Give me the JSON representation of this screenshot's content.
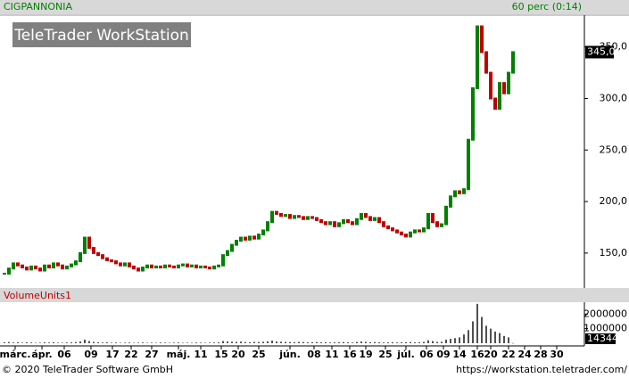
{
  "header": {
    "symbol": "CIGPANNONIA",
    "interval": "60 perc (0:14)",
    "logo": "TeleTrader WorkStation"
  },
  "footer": {
    "copyright": "© 2020 TeleTrader Software GmbH",
    "url": "https://workstation.teletrader.com/"
  },
  "chart_data": [
    {
      "type": "candle",
      "up_color": "#008000",
      "down_color": "#c00000",
      "last_label": "345,0",
      "x": [
        1,
        2,
        3,
        4,
        5,
        6,
        7,
        8,
        9,
        10,
        11,
        12,
        13,
        14,
        15,
        16,
        17,
        18,
        19,
        20,
        21,
        22,
        23,
        24,
        25,
        26,
        27,
        28,
        29,
        30,
        31,
        32,
        33,
        34,
        35,
        36,
        37,
        38,
        39,
        40,
        41,
        42,
        43,
        44,
        45,
        46,
        47,
        48,
        49,
        50,
        51,
        52,
        53,
        54,
        55,
        56,
        57,
        58,
        59,
        60,
        61,
        62,
        63,
        64,
        65,
        66,
        67,
        68,
        69,
        70,
        71,
        72,
        73,
        74,
        75,
        76,
        77,
        78,
        79,
        80,
        81,
        82,
        83,
        84,
        85,
        86,
        87,
        88,
        89,
        90,
        91,
        92,
        93,
        94,
        95,
        96,
        97,
        98,
        99,
        100,
        101,
        102,
        103,
        104,
        105,
        106,
        107,
        108,
        109,
        110,
        111,
        112,
        113,
        114,
        115
      ],
      "values": [
        130,
        135,
        140,
        138,
        136,
        134,
        137,
        135,
        133,
        138,
        136,
        140,
        138,
        135,
        137,
        139,
        142,
        150,
        165,
        155,
        150,
        148,
        145,
        143,
        142,
        140,
        138,
        140,
        137,
        135,
        133,
        136,
        138,
        136,
        137,
        136,
        138,
        137,
        136,
        138,
        139,
        137,
        138,
        136,
        137,
        136,
        135,
        137,
        138,
        148,
        152,
        158,
        162,
        165,
        163,
        166,
        164,
        168,
        172,
        180,
        190,
        188,
        186,
        187,
        184,
        186,
        185,
        183,
        185,
        184,
        182,
        180,
        178,
        180,
        176,
        179,
        182,
        180,
        178,
        183,
        188,
        185,
        182,
        184,
        180,
        176,
        174,
        172,
        170,
        168,
        166,
        170,
        172,
        171,
        174,
        188,
        180,
        176,
        178,
        195,
        205,
        210,
        208,
        212,
        260,
        310,
        370,
        345,
        325,
        300,
        290,
        315,
        305,
        325,
        345
      ],
      "xlim": [
        0,
        131
      ],
      "ylim": [
        117,
        380
      ],
      "yticks": [
        {
          "value": 150,
          "label": "150,0"
        },
        {
          "value": 200,
          "label": "200,0"
        },
        {
          "value": 250,
          "label": "250,0"
        },
        {
          "value": 300,
          "label": "300,0"
        },
        {
          "value": 350,
          "label": "350,0"
        }
      ]
    },
    {
      "type": "bar",
      "title": "VolumeUnits1",
      "color": "#505050",
      "last_label": "14344",
      "x": [
        1,
        2,
        3,
        4,
        5,
        6,
        7,
        8,
        9,
        10,
        11,
        12,
        13,
        14,
        15,
        16,
        17,
        18,
        19,
        20,
        21,
        22,
        23,
        24,
        25,
        26,
        27,
        28,
        29,
        30,
        31,
        32,
        33,
        34,
        35,
        36,
        37,
        38,
        39,
        40,
        41,
        42,
        43,
        44,
        45,
        46,
        47,
        48,
        49,
        50,
        51,
        52,
        53,
        54,
        55,
        56,
        57,
        58,
        59,
        60,
        61,
        62,
        63,
        64,
        65,
        66,
        67,
        68,
        69,
        70,
        71,
        72,
        73,
        74,
        75,
        76,
        77,
        78,
        79,
        80,
        81,
        82,
        83,
        84,
        85,
        86,
        87,
        88,
        89,
        90,
        91,
        92,
        93,
        94,
        95,
        96,
        97,
        98,
        99,
        100,
        101,
        102,
        103,
        104,
        105,
        106,
        107,
        108,
        109,
        110,
        111,
        112,
        113,
        114,
        115
      ],
      "values": [
        60000,
        80000,
        50000,
        70000,
        40000,
        60000,
        50000,
        30000,
        40000,
        60000,
        50000,
        70000,
        40000,
        30000,
        50000,
        60000,
        80000,
        120000,
        250000,
        150000,
        90000,
        70000,
        50000,
        60000,
        40000,
        50000,
        30000,
        40000,
        50000,
        30000,
        40000,
        50000,
        30000,
        40000,
        30000,
        50000,
        40000,
        30000,
        40000,
        50000,
        30000,
        40000,
        30000,
        50000,
        40000,
        30000,
        40000,
        50000,
        60000,
        150000,
        120000,
        100000,
        90000,
        110000,
        80000,
        70000,
        90000,
        80000,
        100000,
        130000,
        180000,
        120000,
        100000,
        90000,
        80000,
        70000,
        90000,
        80000,
        60000,
        70000,
        80000,
        60000,
        70000,
        50000,
        60000,
        70000,
        80000,
        60000,
        50000,
        90000,
        120000,
        90000,
        70000,
        80000,
        60000,
        50000,
        60000,
        70000,
        50000,
        60000,
        70000,
        80000,
        60000,
        70000,
        90000,
        200000,
        150000,
        90000,
        100000,
        250000,
        300000,
        350000,
        400000,
        600000,
        900000,
        1500000,
        2700000,
        1800000,
        1200000,
        1000000,
        800000,
        700000,
        500000,
        400000,
        14344
      ],
      "xlim": [
        0,
        131
      ],
      "ylim": [
        0,
        2750000
      ],
      "yticks": [
        1000000,
        2000000
      ],
      "xticks": [
        {
          "value": 3.4,
          "label": "márc."
        },
        {
          "value": 9.4,
          "label": "ápr."
        },
        {
          "value": 14.4,
          "label": "06"
        },
        {
          "value": 20.4,
          "label": "09"
        },
        {
          "value": 25.2,
          "label": "17"
        },
        {
          "value": 29.4,
          "label": "22"
        },
        {
          "value": 34,
          "label": "27"
        },
        {
          "value": 40,
          "label": "máj."
        },
        {
          "value": 45,
          "label": "11"
        },
        {
          "value": 49.6,
          "label": "15"
        },
        {
          "value": 53.4,
          "label": "20"
        },
        {
          "value": 58,
          "label": "25"
        },
        {
          "value": 65,
          "label": "jún."
        },
        {
          "value": 70.4,
          "label": "08"
        },
        {
          "value": 74.4,
          "label": "11"
        },
        {
          "value": 78.4,
          "label": "16"
        },
        {
          "value": 82,
          "label": "19"
        },
        {
          "value": 86.4,
          "label": "25"
        },
        {
          "value": 91,
          "label": "júl."
        },
        {
          "value": 95.6,
          "label": "06"
        },
        {
          "value": 99.4,
          "label": "09"
        },
        {
          "value": 103,
          "label": "14"
        },
        {
          "value": 107,
          "label": "16"
        },
        {
          "value": 110,
          "label": "20"
        },
        {
          "value": 114,
          "label": "22"
        },
        {
          "value": 117.6,
          "label": "24"
        },
        {
          "value": 121.2,
          "label": "28"
        },
        {
          "value": 124.8,
          "label": "30"
        }
      ]
    }
  ]
}
